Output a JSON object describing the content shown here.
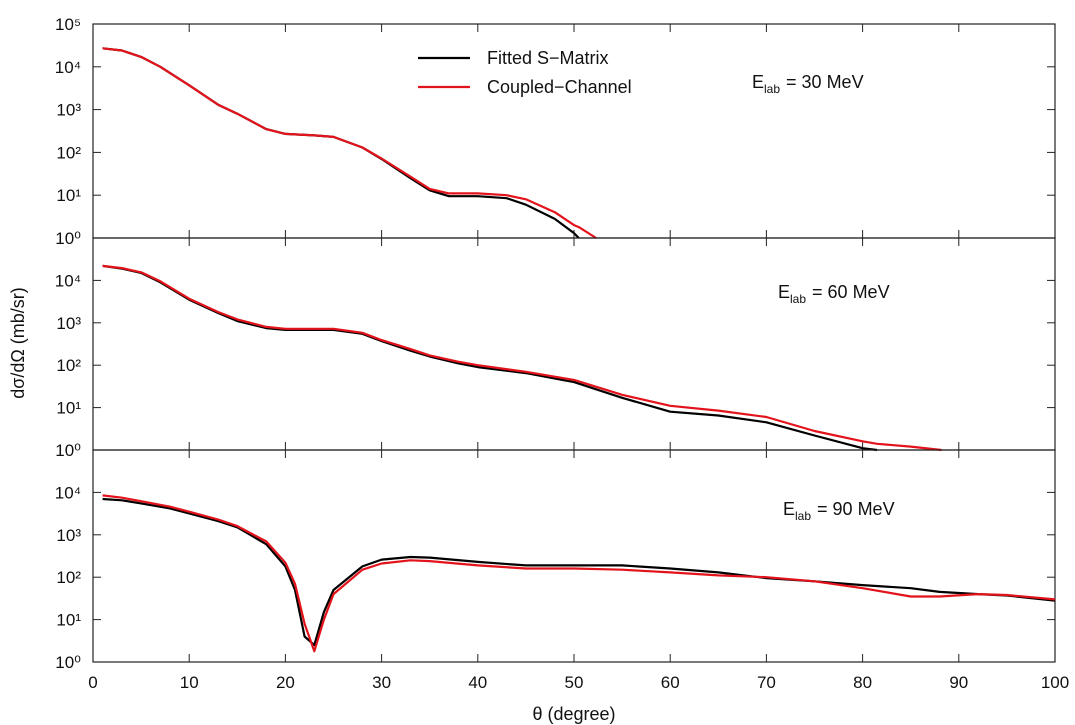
{
  "chart_data": [
    {
      "type": "line",
      "xlim": [
        0,
        100
      ],
      "xticks": [
        0,
        10,
        20,
        30,
        40,
        50,
        60,
        70,
        80,
        90,
        100
      ],
      "ylim": [
        1,
        100000
      ],
      "log_y": true,
      "yticks": [
        {
          "value": 1,
          "label": "10⁰"
        },
        {
          "value": 10,
          "label": "10¹"
        },
        {
          "value": 100,
          "label": "10²"
        },
        {
          "value": 1000,
          "label": "10³"
        },
        {
          "value": 10000,
          "label": "10⁴"
        },
        {
          "value": 100000,
          "label": "10⁵"
        }
      ],
      "annotation": {
        "main": "E",
        "sub": "lab",
        "rest": "= 30 MeV"
      },
      "legend": "upper center",
      "x": [
        1,
        3,
        5,
        7,
        10,
        13,
        15,
        18,
        20,
        23,
        25,
        28,
        30,
        33,
        35,
        37,
        40,
        43,
        45,
        48,
        50,
        50.5,
        52.3
      ],
      "series": [
        {
          "name": "Fitted S−Matrix",
          "color": "#000000",
          "values": [
            27000,
            24000,
            17000,
            10000,
            3700,
            1300,
            800,
            350,
            270,
            250,
            230,
            130,
            70,
            25,
            13,
            9.5,
            9.5,
            8.5,
            6,
            2.8,
            1.3,
            1,
            null
          ]
        },
        {
          "name": "Coupled−Channel",
          "color": "#e3131b",
          "values": [
            27000,
            24000,
            17000,
            10000,
            3700,
            1300,
            800,
            350,
            270,
            250,
            230,
            130,
            72,
            27,
            14,
            11,
            11,
            10,
            8,
            4,
            2,
            1.8,
            1
          ]
        }
      ]
    },
    {
      "type": "line",
      "xlim": [
        0,
        100
      ],
      "xticks": [
        0,
        10,
        20,
        30,
        40,
        50,
        60,
        70,
        80,
        90,
        100
      ],
      "ylim": [
        1,
        100000
      ],
      "log_y": true,
      "yticks": [
        {
          "value": 1,
          "label": "10⁰"
        },
        {
          "value": 10,
          "label": "10¹"
        },
        {
          "value": 100,
          "label": "10²"
        },
        {
          "value": 1000,
          "label": "10³"
        },
        {
          "value": 10000,
          "label": "10⁴"
        }
      ],
      "y_label": "dσ/dΩ (mb/sr)",
      "annotation": {
        "main": "E",
        "sub": "lab",
        "rest": "= 60 MeV"
      },
      "x": [
        1,
        3,
        5,
        7,
        10,
        13,
        15,
        18,
        20,
        23,
        25,
        28,
        30,
        33,
        35,
        38,
        40,
        45,
        50,
        55,
        60,
        65,
        70,
        75,
        80,
        81.5,
        85,
        88.2
      ],
      "series": [
        {
          "color": "#000000",
          "values": [
            22000,
            19000,
            15000,
            9000,
            3500,
            1700,
            1100,
            750,
            680,
            680,
            680,
            550,
            370,
            220,
            160,
            110,
            90,
            65,
            40,
            17,
            8,
            6.5,
            4.5,
            2.2,
            1.1,
            1,
            null,
            null
          ]
        },
        {
          "color": "#e3131b",
          "values": [
            22000,
            19500,
            15500,
            9500,
            3700,
            1800,
            1200,
            800,
            720,
            720,
            720,
            580,
            390,
            240,
            170,
            120,
            100,
            70,
            45,
            20,
            11,
            8.5,
            6,
            2.8,
            1.6,
            1.4,
            1.2,
            1
          ]
        }
      ]
    },
    {
      "type": "line",
      "xlim": [
        0,
        100
      ],
      "xticks": [
        0,
        10,
        20,
        30,
        40,
        50,
        60,
        70,
        80,
        90,
        100
      ],
      "ylim": [
        1,
        100000
      ],
      "log_y": true,
      "yticks": [
        {
          "value": 1,
          "label": "10⁰"
        },
        {
          "value": 10,
          "label": "10¹"
        },
        {
          "value": 100,
          "label": "10²"
        },
        {
          "value": 1000,
          "label": "10³"
        },
        {
          "value": 10000,
          "label": "10⁴"
        }
      ],
      "x_label": "θ (degree)",
      "annotation": {
        "main": "E",
        "sub": "lab",
        "rest": "= 90 MeV"
      },
      "x": [
        1,
        3,
        5,
        8,
        10,
        13,
        15,
        18,
        20,
        21,
        22,
        23,
        24,
        25,
        28,
        30,
        33,
        35,
        40,
        45,
        50,
        55,
        60,
        65,
        70,
        75,
        80,
        85,
        88,
        92,
        95,
        100
      ],
      "series": [
        {
          "color": "#000000",
          "values": [
            7000,
            6500,
            5500,
            4200,
            3200,
            2100,
            1500,
            600,
            180,
            50,
            4,
            2.5,
            15,
            50,
            180,
            260,
            300,
            290,
            230,
            190,
            190,
            190,
            160,
            130,
            95,
            80,
            65,
            55,
            45,
            40,
            37,
            28
          ]
        },
        {
          "color": "#e3131b",
          "values": [
            8500,
            7500,
            6200,
            4600,
            3500,
            2300,
            1600,
            700,
            220,
            70,
            8,
            1.8,
            10,
            40,
            150,
            210,
            250,
            240,
            190,
            160,
            160,
            150,
            130,
            110,
            100,
            80,
            55,
            35,
            35,
            40,
            38,
            30
          ]
        }
      ]
    }
  ]
}
